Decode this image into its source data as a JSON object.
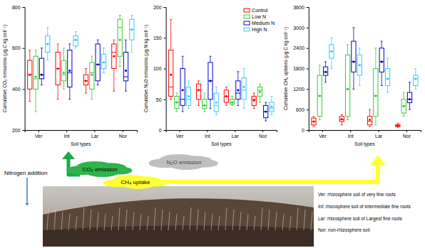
{
  "chart_data": [
    {
      "type": "box",
      "x_label": "Soil types",
      "y_label": "Cumulative CO₂ emissions (μg C kg soil⁻¹)",
      "categories": [
        "Ver",
        "Int",
        "Lar",
        "Nor"
      ],
      "ylim": [
        200,
        800
      ],
      "yticks": [
        200,
        400,
        600,
        800
      ],
      "marker": "circle",
      "series": [
        {
          "name": "Control",
          "color": "#ff0000",
          "min": [
            340,
            350,
            380,
            390
          ],
          "q1": [
            400,
            420,
            420,
            500
          ],
          "median": [
            470,
            500,
            440,
            580
          ],
          "q3": [
            540,
            580,
            470,
            620
          ],
          "max": [
            590,
            620,
            500,
            640
          ],
          "mean": [
            470,
            500,
            440,
            560
          ]
        },
        {
          "name": "Low N",
          "color": "#33cc33",
          "min": [
            290,
            400,
            350,
            510
          ],
          "q1": [
            400,
            440,
            400,
            560
          ],
          "median": [
            450,
            470,
            480,
            700
          ],
          "q3": [
            560,
            540,
            530,
            740
          ],
          "max": [
            590,
            600,
            560,
            760
          ],
          "mean": [
            460,
            480,
            470,
            640
          ]
        },
        {
          "name": "Medium N",
          "color": "#0000cc",
          "min": [
            420,
            350,
            420,
            390
          ],
          "q1": [
            450,
            410,
            440,
            440
          ],
          "median": [
            470,
            480,
            520,
            460
          ],
          "q3": [
            550,
            590,
            620,
            580
          ],
          "max": [
            600,
            620,
            640,
            640
          ],
          "mean": [
            470,
            490,
            520,
            490
          ]
        },
        {
          "name": "High N",
          "color": "#33ccff",
          "min": [
            540,
            600,
            480,
            580
          ],
          "q1": [
            580,
            610,
            500,
            640
          ],
          "median": [
            620,
            640,
            530,
            690
          ],
          "q3": [
            660,
            660,
            570,
            740
          ],
          "max": [
            700,
            680,
            600,
            760
          ],
          "mean": [
            620,
            640,
            530,
            690
          ]
        }
      ]
    },
    {
      "type": "box",
      "x_label": "Soil types",
      "y_label": "Cumulative N₂O emissions (μg N kg soil⁻¹)",
      "categories": [
        "Ver",
        "Int",
        "Lar",
        "Nor"
      ],
      "ylim": [
        0,
        200
      ],
      "yticks": [
        0,
        50,
        100,
        150,
        200
      ],
      "marker": "circle",
      "legend": "upper right",
      "series": [
        {
          "name": "Control",
          "color": "#ff0000",
          "min": [
            50,
            40,
            40,
            35
          ],
          "q1": [
            55,
            50,
            45,
            40
          ],
          "median": [
            70,
            65,
            55,
            50
          ],
          "q3": [
            130,
            75,
            65,
            55
          ],
          "max": [
            180,
            80,
            70,
            60
          ],
          "mean": [
            90,
            65,
            55,
            48
          ]
        },
        {
          "name": "Low N",
          "color": "#33cc33",
          "min": [
            30,
            30,
            40,
            45
          ],
          "q1": [
            35,
            35,
            42,
            55
          ],
          "median": [
            45,
            40,
            45,
            65
          ],
          "q3": [
            55,
            50,
            50,
            70
          ],
          "max": [
            60,
            60,
            55,
            75
          ],
          "mean": [
            45,
            40,
            45,
            62
          ]
        },
        {
          "name": "Medium N",
          "color": "#0000cc",
          "min": [
            30,
            35,
            40,
            15
          ],
          "q1": [
            40,
            50,
            50,
            20
          ],
          "median": [
            50,
            80,
            60,
            30
          ],
          "q3": [
            100,
            110,
            80,
            40
          ],
          "max": [
            120,
            120,
            95,
            45
          ],
          "mean": [
            65,
            80,
            65,
            30
          ]
        },
        {
          "name": "High N",
          "color": "#33ccff",
          "min": [
            35,
            25,
            35,
            25
          ],
          "q1": [
            40,
            30,
            50,
            30
          ],
          "median": [
            50,
            40,
            65,
            35
          ],
          "q3": [
            70,
            60,
            85,
            45
          ],
          "max": [
            80,
            70,
            100,
            55
          ],
          "mean": [
            55,
            45,
            70,
            38
          ]
        }
      ]
    },
    {
      "type": "box",
      "x_label": "Soil types",
      "y_label": "Cumulative CH₄ uptakes (μg C kg soil⁻¹)",
      "categories": [
        "Ver",
        "Int",
        "Lar",
        "Nor"
      ],
      "ylim": [
        0,
        3600
      ],
      "yticks": [
        0,
        600,
        1200,
        1800,
        2400,
        3000,
        3600
      ],
      "marker": "circle",
      "series": [
        {
          "name": "Control",
          "color": "#ff0000",
          "min": [
            100,
            150,
            100,
            80
          ],
          "q1": [
            150,
            250,
            150,
            100
          ],
          "median": [
            250,
            300,
            250,
            130
          ],
          "q3": [
            350,
            400,
            400,
            160
          ],
          "max": [
            400,
            450,
            600,
            200
          ],
          "mean": [
            250,
            320,
            300,
            130
          ]
        },
        {
          "name": "Low N",
          "color": "#33cc33",
          "min": [
            300,
            300,
            150,
            400
          ],
          "q1": [
            400,
            400,
            400,
            500
          ],
          "median": [
            1000,
            1200,
            1000,
            700
          ],
          "q3": [
            1600,
            2200,
            1800,
            900
          ],
          "max": [
            1900,
            2500,
            2400,
            1100
          ],
          "mean": [
            1000,
            1200,
            1000,
            700
          ]
        },
        {
          "name": "Medium N",
          "color": "#0000cc",
          "min": [
            1400,
            1200,
            1300,
            600
          ],
          "q1": [
            1600,
            1700,
            1700,
            800
          ],
          "median": [
            1700,
            2000,
            2000,
            900
          ],
          "q3": [
            1850,
            2600,
            2400,
            1100
          ],
          "max": [
            2000,
            3000,
            2600,
            1400
          ],
          "mean": [
            1700,
            2000,
            2000,
            900
          ]
        },
        {
          "name": "High N",
          "color": "#33ccff",
          "min": [
            1800,
            1300,
            1100,
            1200
          ],
          "q1": [
            2100,
            1600,
            1300,
            1300
          ],
          "median": [
            2300,
            1900,
            1500,
            1500
          ],
          "q3": [
            2500,
            2200,
            1800,
            1600
          ],
          "max": [
            2700,
            2400,
            2100,
            1800
          ],
          "mean": [
            2300,
            1900,
            1500,
            1500
          ]
        }
      ]
    }
  ],
  "diagram": {
    "nitrogen_label": "Nitrogen addition",
    "co2_label": "CO₂ emission",
    "n2o_label": "N₂O emission",
    "ch4_label": "CH₄ uptake",
    "notes": [
      "Ver: rhizosphere soil of very fine roots",
      "Int: rhizosphere soil of intermediate fine roots",
      "Lar: rhizosphere soil of Largest fine roots",
      "Nor: non-rhizosphere soil"
    ]
  }
}
